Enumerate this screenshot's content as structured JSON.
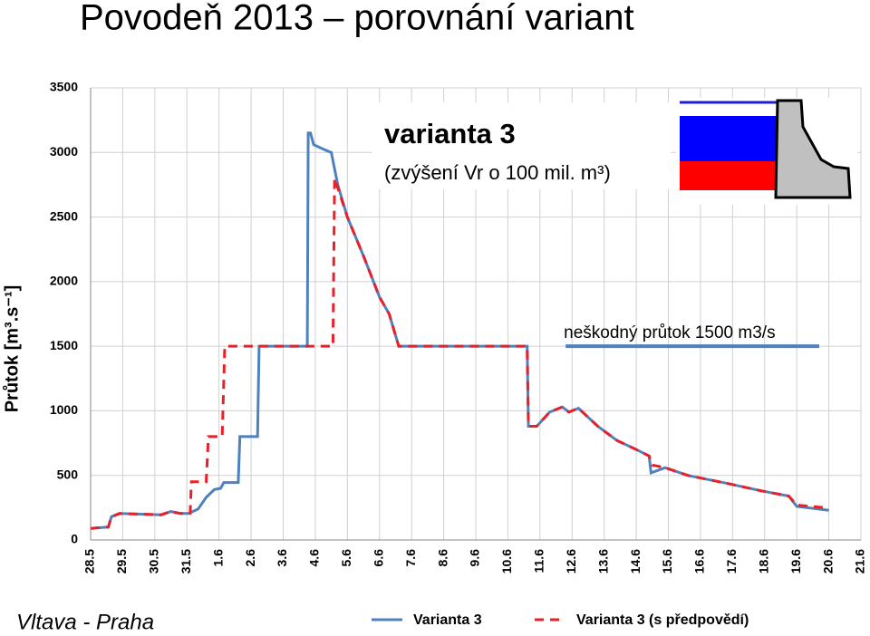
{
  "chart_data": {
    "type": "line",
    "title": "Povodeň 2013 – porovnání variant",
    "ylabel": "Průtok [m³.s⁻¹]",
    "footer": "Vltava - Praha",
    "annotation": {
      "title": "varianta 3",
      "text": "(zvýšení Vr o 100 mil. m³)"
    },
    "threshold": {
      "label": "neškodný průtok 1500 m3/s",
      "value": 1500,
      "x": [
        14.8,
        22.7
      ],
      "color": "#4f81bd"
    },
    "grid": true,
    "xlim": [
      0,
      24
    ],
    "xticks": [
      {
        "value": 0,
        "label": "28.5"
      },
      {
        "value": 1,
        "label": "29.5"
      },
      {
        "value": 2,
        "label": "30.5"
      },
      {
        "value": 3,
        "label": "31.5"
      },
      {
        "value": 4,
        "label": "1.6"
      },
      {
        "value": 5,
        "label": "2.6"
      },
      {
        "value": 6,
        "label": "3.6"
      },
      {
        "value": 7,
        "label": "4.6"
      },
      {
        "value": 8,
        "label": "5.6"
      },
      {
        "value": 9,
        "label": "6.6"
      },
      {
        "value": 10,
        "label": "7.6"
      },
      {
        "value": 11,
        "label": "8.6"
      },
      {
        "value": 12,
        "label": "9.6"
      },
      {
        "value": 13,
        "label": "10.6"
      },
      {
        "value": 14,
        "label": "11.6"
      },
      {
        "value": 15,
        "label": "12.6"
      },
      {
        "value": 16,
        "label": "13.6"
      },
      {
        "value": 17,
        "label": "14.6"
      },
      {
        "value": 18,
        "label": "15.6"
      },
      {
        "value": 19,
        "label": "16.6"
      },
      {
        "value": 20,
        "label": "17.6"
      },
      {
        "value": 21,
        "label": "18.6"
      },
      {
        "value": 22,
        "label": "19.6"
      },
      {
        "value": 23,
        "label": "20.6"
      },
      {
        "value": 24,
        "label": "21.6"
      }
    ],
    "ylim": [
      0,
      3500
    ],
    "yticks": [
      0,
      500,
      1000,
      1500,
      2000,
      2500,
      3000,
      3500
    ],
    "series": [
      {
        "name": "Varianta 3",
        "color": "#4f81bd",
        "dash": false,
        "x": [
          0,
          0.55,
          0.65,
          0.9,
          2.2,
          2.5,
          2.8,
          3.05,
          3.35,
          3.6,
          3.85,
          4.05,
          4.15,
          4.6,
          4.65,
          5.2,
          5.25,
          6.75,
          6.78,
          6.85,
          6.95,
          7.3,
          7.5,
          7.7,
          8.0,
          8.5,
          9.0,
          9.3,
          9.6,
          13.6,
          13.64,
          13.9,
          14.3,
          14.7,
          14.9,
          15.2,
          15.8,
          16.4,
          17.0,
          17.4,
          17.46,
          17.9,
          18.6,
          19.8,
          20.9,
          21.75,
          22.0,
          23.0
        ],
        "values": [
          90,
          100,
          180,
          205,
          195,
          220,
          205,
          205,
          240,
          330,
          390,
          400,
          445,
          445,
          800,
          800,
          1500,
          1500,
          3150,
          3150,
          3060,
          3020,
          3000,
          2750,
          2500,
          2200,
          1880,
          1750,
          1500,
          1500,
          880,
          880,
          990,
          1030,
          990,
          1020,
          880,
          770,
          700,
          650,
          520,
          560,
          500,
          440,
          380,
          340,
          260,
          230
        ]
      },
      {
        "name": "Varianta 3 (s předpovědí)",
        "color": "#e8202a",
        "dash": true,
        "x": [
          0,
          0.55,
          0.65,
          0.9,
          2.2,
          2.5,
          2.8,
          3.1,
          3.14,
          3.6,
          3.67,
          4.1,
          4.18,
          7.55,
          7.6,
          7.8,
          8.0,
          8.5,
          9.0,
          9.3,
          9.6,
          13.6,
          13.64,
          13.9,
          14.3,
          14.7,
          14.9,
          15.2,
          15.8,
          16.4,
          17.0,
          17.4,
          17.5,
          17.9,
          18.6,
          19.8,
          20.9,
          21.75,
          22.0,
          22.9
        ],
        "values": [
          90,
          100,
          180,
          205,
          195,
          220,
          205,
          205,
          450,
          450,
          800,
          800,
          1500,
          1500,
          2800,
          2650,
          2500,
          2200,
          1880,
          1750,
          1500,
          1500,
          880,
          880,
          990,
          1030,
          990,
          1020,
          880,
          770,
          700,
          650,
          580,
          560,
          500,
          440,
          380,
          340,
          270,
          250
        ]
      }
    ]
  }
}
